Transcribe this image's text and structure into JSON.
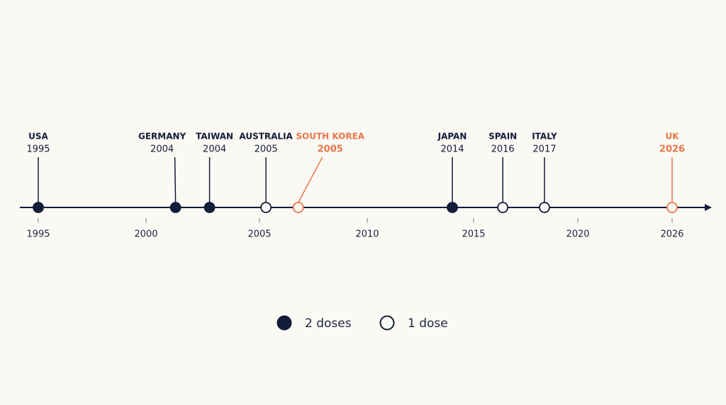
{
  "chart_data": {
    "type": "timeline",
    "xticks": [
      1995,
      2000,
      2005,
      2010,
      2015,
      2020,
      2026
    ],
    "events": [
      {
        "name": "USA",
        "year": 1995,
        "x": 1995,
        "doses": 2,
        "color": "#131c3a"
      },
      {
        "name": "GERMANY",
        "year": 2004,
        "x": 2001.3,
        "doses": 2,
        "color": "#131c3a"
      },
      {
        "name": "TAIWAN",
        "year": 2004,
        "x": 2002.8,
        "doses": 2,
        "color": "#131c3a"
      },
      {
        "name": "AUSTRALIA",
        "year": 2005,
        "x": 2005.3,
        "doses": 1,
        "color": "#131c3a"
      },
      {
        "name": "SOUTH KOREA",
        "year": 2005,
        "x": 2006.8,
        "doses": 1,
        "color": "#e8764a"
      },
      {
        "name": "JAPAN",
        "year": 2014,
        "x": 2014,
        "doses": 2,
        "color": "#131c3a"
      },
      {
        "name": "SPAIN",
        "year": 2016,
        "x": 2016.4,
        "doses": 1,
        "color": "#131c3a"
      },
      {
        "name": "ITALY",
        "year": 2017,
        "x": 2018.4,
        "doses": 1,
        "color": "#131c3a"
      },
      {
        "name": "UK",
        "year": 2026,
        "x": 2026,
        "doses": 1,
        "color": "#e8764a"
      }
    ],
    "legend": [
      {
        "name": "2 doses",
        "doses": 2
      },
      {
        "name": "1 dose",
        "doses": 1
      }
    ]
  }
}
